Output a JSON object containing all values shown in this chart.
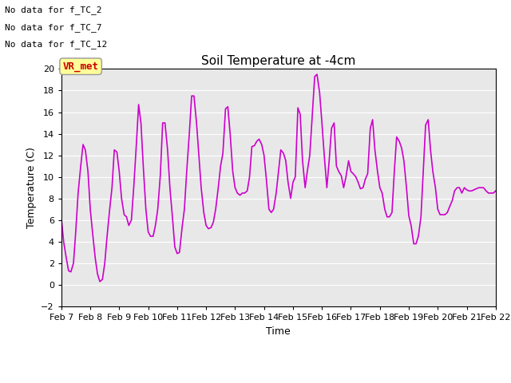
{
  "title": "Soil Temperature at -4cm",
  "xlabel": "Time",
  "ylabel": "Temperature (C)",
  "legend_color": "#cc00cc",
  "ylim": [
    -2,
    20
  ],
  "yticks": [
    -2,
    0,
    2,
    4,
    6,
    8,
    10,
    12,
    14,
    16,
    18,
    20
  ],
  "xtick_labels": [
    "Feb 7",
    "Feb 8",
    "Feb 9",
    "Feb 10",
    "Feb 11",
    "Feb 12",
    "Feb 13",
    "Feb 14",
    "Feb 15",
    "Feb 16",
    "Feb 17",
    "Feb 18",
    "Feb 19",
    "Feb 20",
    "Feb 21",
    "Feb 22"
  ],
  "text_lines": [
    "No data for f_TC_2",
    "No data for f_TC_7",
    "No data for f_TC_12"
  ],
  "annotation_text": "VR_met",
  "annotation_bg": "#ffff99",
  "annotation_color": "#cc0000",
  "plot_bg_color": "#e8e8e8",
  "fig_bg_color": "#ffffff",
  "line_color": "#cc00cc",
  "line_width": 1.2,
  "x_values": [
    0,
    0.08,
    0.17,
    0.25,
    0.33,
    0.42,
    0.5,
    0.58,
    0.67,
    0.75,
    0.83,
    0.92,
    1.0,
    1.08,
    1.17,
    1.25,
    1.33,
    1.42,
    1.5,
    1.58,
    1.67,
    1.75,
    1.83,
    1.92,
    2.0,
    2.08,
    2.17,
    2.25,
    2.33,
    2.42,
    2.5,
    2.58,
    2.67,
    2.75,
    2.83,
    2.92,
    3.0,
    3.08,
    3.17,
    3.25,
    3.33,
    3.42,
    3.5,
    3.58,
    3.67,
    3.75,
    3.83,
    3.92,
    4.0,
    4.08,
    4.17,
    4.25,
    4.33,
    4.42,
    4.5,
    4.58,
    4.67,
    4.75,
    4.83,
    4.92,
    5.0,
    5.08,
    5.17,
    5.25,
    5.33,
    5.42,
    5.5,
    5.58,
    5.67,
    5.75,
    5.83,
    5.92,
    6.0,
    6.08,
    6.17,
    6.25,
    6.33,
    6.42,
    6.5,
    6.58,
    6.67,
    6.75,
    6.83,
    6.92,
    7.0,
    7.08,
    7.17,
    7.25,
    7.33,
    7.42,
    7.5,
    7.58,
    7.67,
    7.75,
    7.83,
    7.92,
    8.0,
    8.08,
    8.17,
    8.25,
    8.33,
    8.42,
    8.5,
    8.58,
    8.67,
    8.75,
    8.83,
    8.92,
    9.0,
    9.08,
    9.17,
    9.25,
    9.33,
    9.42,
    9.5,
    9.58,
    9.67,
    9.75,
    9.83,
    9.92,
    10.0,
    10.08,
    10.17,
    10.25,
    10.33,
    10.42,
    10.5,
    10.58,
    10.67,
    10.75,
    10.83,
    10.92,
    11.0,
    11.08,
    11.17,
    11.25,
    11.33,
    11.42,
    11.5,
    11.58,
    11.67,
    11.75,
    11.83,
    11.92,
    12.0,
    12.08,
    12.17,
    12.25,
    12.33,
    12.42,
    12.5,
    12.58,
    12.67,
    12.75,
    12.83,
    12.92,
    13.0,
    13.08,
    13.17,
    13.25,
    13.33,
    13.42,
    13.5,
    13.58,
    13.67,
    13.75,
    13.83,
    13.92,
    14.0,
    14.08,
    14.17,
    14.25,
    14.33,
    14.42,
    14.5,
    14.58,
    14.67,
    14.75,
    14.83,
    14.92,
    15.0
  ],
  "y_values": [
    6.2,
    4.0,
    2.5,
    1.3,
    1.2,
    2.0,
    5.0,
    8.5,
    11.0,
    13.0,
    12.5,
    10.5,
    7.0,
    4.8,
    2.5,
    1.0,
    0.3,
    0.5,
    2.0,
    4.5,
    7.0,
    9.0,
    12.5,
    12.3,
    10.5,
    8.0,
    6.5,
    6.3,
    5.5,
    6.0,
    9.0,
    12.5,
    16.7,
    15.0,
    11.0,
    7.0,
    4.9,
    4.5,
    4.5,
    5.5,
    7.0,
    10.2,
    15.0,
    15.0,
    12.5,
    9.0,
    6.5,
    3.5,
    2.9,
    3.0,
    5.3,
    7.0,
    10.5,
    14.0,
    17.5,
    17.5,
    15.0,
    12.0,
    9.0,
    6.7,
    5.5,
    5.2,
    5.3,
    5.8,
    7.0,
    9.0,
    11.0,
    12.2,
    16.3,
    16.5,
    14.0,
    10.5,
    9.0,
    8.5,
    8.3,
    8.5,
    8.5,
    8.7,
    10.0,
    12.8,
    12.9,
    13.3,
    13.5,
    13.0,
    12.0,
    9.8,
    7.0,
    6.7,
    7.0,
    8.5,
    10.5,
    12.5,
    12.2,
    11.5,
    9.5,
    8.0,
    9.5,
    10.0,
    16.4,
    15.8,
    11.5,
    9.0,
    10.6,
    12.0,
    15.8,
    19.3,
    19.5,
    17.8,
    15.0,
    12.0,
    9.0,
    11.5,
    14.5,
    15.0,
    11.0,
    10.5,
    10.1,
    9.0,
    10.0,
    11.5,
    10.5,
    10.3,
    10.0,
    9.5,
    8.9,
    9.0,
    9.8,
    10.3,
    14.5,
    15.3,
    12.5,
    10.5,
    9.0,
    8.5,
    7.0,
    6.3,
    6.3,
    6.7,
    10.5,
    13.7,
    13.3,
    12.7,
    11.5,
    9.0,
    6.4,
    5.5,
    3.8,
    3.8,
    4.5,
    6.3,
    10.5,
    14.8,
    15.3,
    12.5,
    10.5,
    9.0,
    7.0,
    6.5,
    6.5,
    6.5,
    6.7,
    7.3,
    7.8,
    8.7,
    9.0,
    9.0,
    8.5,
    9.0,
    8.8,
    8.7,
    8.7,
    8.8,
    8.9,
    9.0,
    9.0,
    9.0,
    8.7,
    8.5,
    8.5,
    8.5,
    8.7
  ]
}
